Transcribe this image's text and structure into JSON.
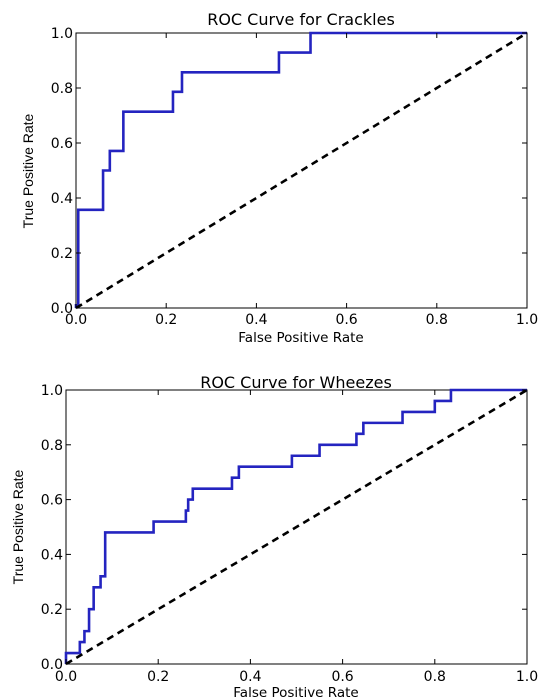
{
  "chart_data": [
    {
      "type": "line",
      "title": "ROC Curve for Crackles",
      "xlabel": "False Positive Rate",
      "ylabel": "True Positive Rate",
      "xlim": [
        0.0,
        1.0
      ],
      "ylim": [
        0.0,
        1.0
      ],
      "xticks": [
        "0.0",
        "0.2",
        "0.4",
        "0.6",
        "0.8",
        "1.0"
      ],
      "yticks": [
        "0.0",
        "0.2",
        "0.4",
        "0.6",
        "0.8",
        "1.0"
      ],
      "grid": false,
      "series": [
        {
          "style": "solid",
          "color": "#2424c0",
          "x": [
            0.0,
            0.0,
            0.005,
            0.005,
            0.06,
            0.06,
            0.075,
            0.075,
            0.105,
            0.105,
            0.215,
            0.215,
            0.235,
            0.235,
            0.45,
            0.45,
            0.52,
            0.52,
            1.0
          ],
          "y": [
            0.0,
            0.01,
            0.01,
            0.357,
            0.357,
            0.5,
            0.5,
            0.571,
            0.571,
            0.714,
            0.714,
            0.786,
            0.786,
            0.857,
            0.857,
            0.929,
            0.929,
            1.0,
            1.0
          ]
        },
        {
          "style": "dashed",
          "color": "#000000",
          "x": [
            0.0,
            1.0
          ],
          "y": [
            0.0,
            1.0
          ]
        }
      ]
    },
    {
      "type": "line",
      "title": "ROC Curve for Wheezes",
      "xlabel": "False Positive Rate",
      "ylabel": "True Positive Rate",
      "xlim": [
        0.0,
        1.0
      ],
      "ylim": [
        0.0,
        1.0
      ],
      "xticks": [
        "0.0",
        "0.2",
        "0.4",
        "0.6",
        "0.8",
        "1.0"
      ],
      "yticks": [
        "0.0",
        "0.2",
        "0.4",
        "0.6",
        "0.8",
        "1.0"
      ],
      "grid": false,
      "series": [
        {
          "style": "solid",
          "color": "#2424c0",
          "x": [
            0.0,
            0.0,
            0.03,
            0.03,
            0.04,
            0.04,
            0.05,
            0.05,
            0.06,
            0.06,
            0.075,
            0.075,
            0.085,
            0.085,
            0.19,
            0.19,
            0.26,
            0.26,
            0.265,
            0.265,
            0.275,
            0.275,
            0.28,
            0.28,
            0.36,
            0.36,
            0.375,
            0.375,
            0.4,
            0.4,
            0.49,
            0.49,
            0.55,
            0.55,
            0.63,
            0.63,
            0.645,
            0.645,
            0.73,
            0.73,
            0.8,
            0.8,
            0.835,
            0.835,
            1.0
          ],
          "y": [
            0.0,
            0.04,
            0.04,
            0.08,
            0.08,
            0.12,
            0.12,
            0.2,
            0.2,
            0.28,
            0.28,
            0.32,
            0.32,
            0.48,
            0.48,
            0.52,
            0.52,
            0.56,
            0.56,
            0.6,
            0.6,
            0.64,
            0.64,
            0.64,
            0.64,
            0.68,
            0.68,
            0.72,
            0.72,
            0.72,
            0.72,
            0.76,
            0.76,
            0.8,
            0.8,
            0.84,
            0.84,
            0.88,
            0.88,
            0.92,
            0.92,
            0.96,
            0.96,
            1.0,
            1.0
          ]
        },
        {
          "style": "dashed",
          "color": "#000000",
          "x": [
            0.0,
            1.0
          ],
          "y": [
            0.0,
            1.0
          ]
        }
      ]
    }
  ]
}
